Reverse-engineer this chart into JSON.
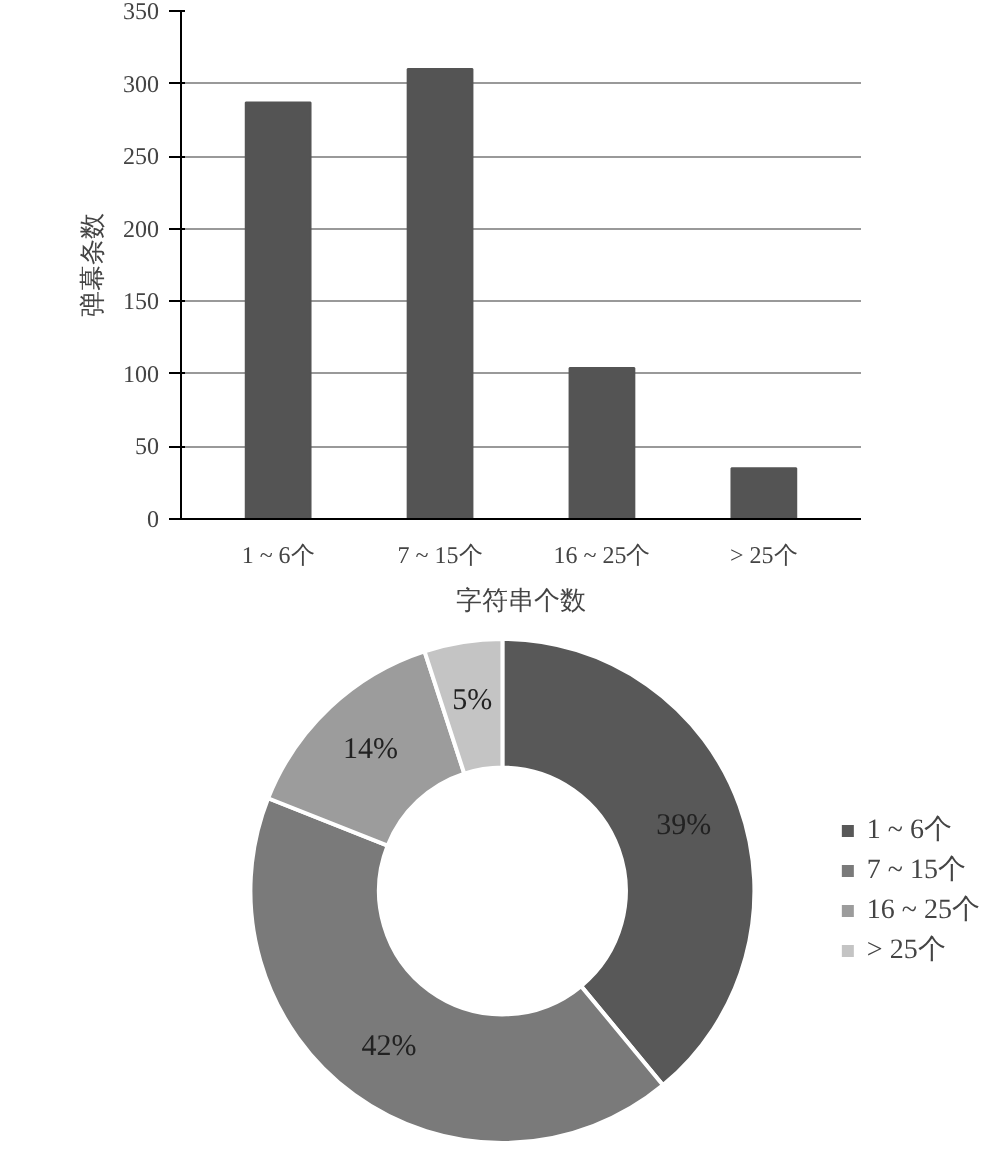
{
  "chart_data": [
    {
      "type": "bar",
      "xlabel": "字符串个数",
      "ylabel": "弹幕条数",
      "categories": [
        "1 ~ 6个",
        "7 ~ 15个",
        "16 ~ 25个",
        "> 25个"
      ],
      "values": [
        287,
        310,
        104,
        35
      ],
      "color": "#545454",
      "ylim": [
        0,
        350
      ],
      "yticks": [
        0,
        50,
        100,
        150,
        200,
        250,
        300,
        350
      ],
      "grid": "y"
    },
    {
      "type": "donut",
      "categories": [
        "1 ~ 6个",
        "7 ~ 15个",
        "16 ~ 25个",
        "> 25个"
      ],
      "values": [
        39,
        42,
        14,
        5
      ],
      "value_labels": [
        "39%",
        "42%",
        "14%",
        "5%"
      ],
      "colors": [
        "#585858",
        "#7a7a7a",
        "#9c9c9c",
        "#c4c4c4"
      ],
      "legend": "right"
    }
  ]
}
